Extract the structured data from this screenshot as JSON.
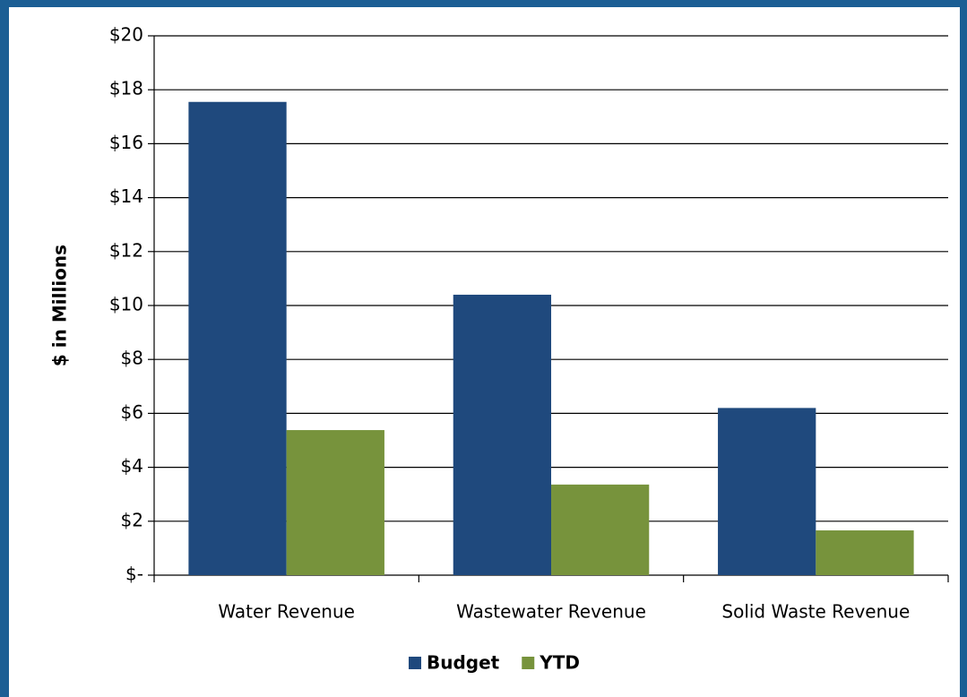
{
  "chart_data": {
    "type": "bar",
    "categories": [
      "Water Revenue",
      "Wastewater Revenue",
      "Solid Waste Revenue"
    ],
    "series": [
      {
        "name": "Budget",
        "color": "#1f497d",
        "values": [
          17.55,
          10.4,
          6.2
        ]
      },
      {
        "name": "YTD",
        "color": "#77933c",
        "values": [
          5.38,
          3.36,
          1.66
        ]
      }
    ],
    "ylabel": "$ in Millions",
    "ylim": [
      0,
      20
    ],
    "yticks": [
      {
        "value": 0,
        "label": "$-"
      },
      {
        "value": 2,
        "label": "$2"
      },
      {
        "value": 4,
        "label": "$4"
      },
      {
        "value": 6,
        "label": "$6"
      },
      {
        "value": 8,
        "label": "$8"
      },
      {
        "value": 10,
        "label": "$10"
      },
      {
        "value": 12,
        "label": "$12"
      },
      {
        "value": 14,
        "label": "$14"
      },
      {
        "value": 16,
        "label": "$16"
      },
      {
        "value": 18,
        "label": "$18"
      },
      {
        "value": 20,
        "label": "$20"
      }
    ],
    "grid": true,
    "legend": "bottom"
  }
}
